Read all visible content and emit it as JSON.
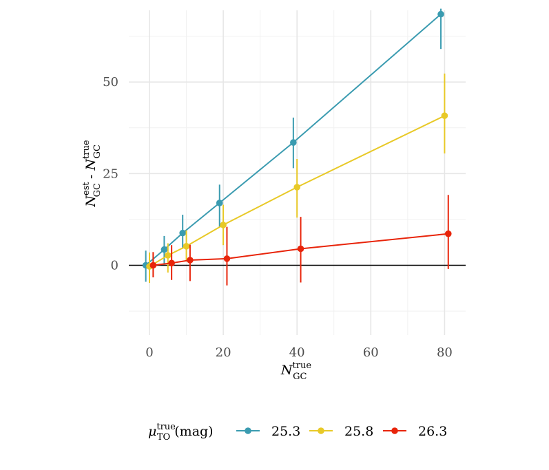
{
  "chart_data": {
    "type": "line",
    "xlabel": {
      "main": "N",
      "sub": "GC",
      "sup": "true"
    },
    "ylabel": {
      "left": {
        "main": "N",
        "sub": "GC",
        "sup": "est"
      },
      "sep": " - ",
      "right": {
        "main": "N",
        "sub": "GC",
        "sup": "true"
      }
    },
    "xlim": [
      -6,
      86
    ],
    "ylim": [
      -18,
      69
    ],
    "x_ticks": [
      0,
      20,
      40,
      60,
      80
    ],
    "y_ticks": [
      0,
      25,
      50
    ],
    "x_tick_labels": [
      "0",
      "20",
      "40",
      "60",
      "80"
    ],
    "y_tick_labels": [
      "0",
      "25",
      "50"
    ],
    "grid": true,
    "reference_line_y": 0,
    "legend": {
      "placement": "bottom",
      "title": {
        "main": "μ",
        "sub": "TO",
        "sup": "true",
        "suffix": " (mag)"
      }
    },
    "series": [
      {
        "name": "25.3",
        "color": "#3a9bb0",
        "points": [
          {
            "x": -1,
            "y": 0,
            "lo": -4.5,
            "hi": 4.0
          },
          {
            "x": 4,
            "y": 4.3,
            "lo": 0.5,
            "hi": 8.0
          },
          {
            "x": 9,
            "y": 8.8,
            "lo": 4.5,
            "hi": 13.8
          },
          {
            "x": 19,
            "y": 17,
            "lo": 10.5,
            "hi": 22.0
          },
          {
            "x": 39,
            "y": 33.5,
            "lo": 26.5,
            "hi": 40.3
          },
          {
            "x": 79,
            "y": 68.5,
            "lo": 59.0,
            "hi": 70.0
          }
        ]
      },
      {
        "name": "25.8",
        "color": "#e8c927",
        "points": [
          {
            "x": 0,
            "y": -0.3,
            "lo": -4.8,
            "hi": 3.5
          },
          {
            "x": 5,
            "y": 2.7,
            "lo": -2.0,
            "hi": 6.0
          },
          {
            "x": 10,
            "y": 5.2,
            "lo": 1.0,
            "hi": 9.5
          },
          {
            "x": 20,
            "y": 11,
            "lo": 5.5,
            "hi": 16.5
          },
          {
            "x": 40,
            "y": 21.3,
            "lo": 13.0,
            "hi": 29.0
          },
          {
            "x": 80,
            "y": 40.8,
            "lo": 30.5,
            "hi": 52.3
          }
        ]
      },
      {
        "name": "26.3",
        "color": "#e8240a",
        "points": [
          {
            "x": 1,
            "y": 0,
            "lo": -3.3,
            "hi": 3.6
          },
          {
            "x": 6,
            "y": 0.6,
            "lo": -4.0,
            "hi": 5.5
          },
          {
            "x": 11,
            "y": 1.4,
            "lo": -4.3,
            "hi": 5.6
          },
          {
            "x": 21,
            "y": 1.8,
            "lo": -5.5,
            "hi": 10.5
          },
          {
            "x": 41,
            "y": 4.5,
            "lo": -4.7,
            "hi": 13.2
          },
          {
            "x": 81,
            "y": 8.6,
            "lo": -1.0,
            "hi": 19.2
          }
        ]
      }
    ]
  }
}
